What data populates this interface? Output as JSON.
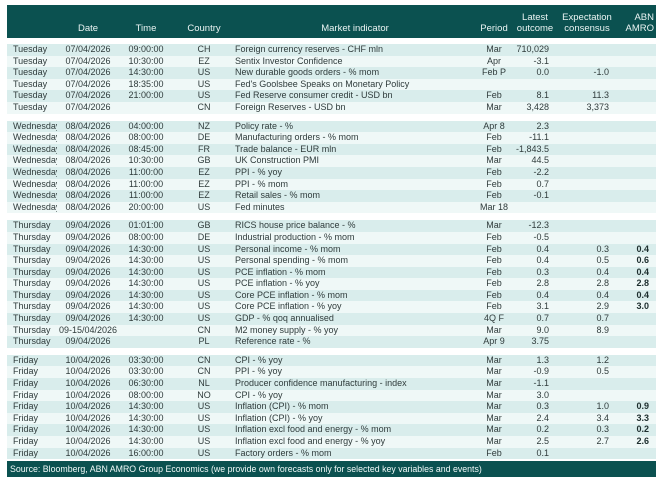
{
  "colors": {
    "header_bg": "#0b5150",
    "footer_bg": "#0b5150",
    "row_light": "#d9edec",
    "row_lighter": "#eff8f7",
    "abn_accent_text": "#1d2e2e"
  },
  "header": {
    "date": "Date",
    "time": "Time",
    "country": "Country",
    "indicator": "Market indicator",
    "period": "Period",
    "latest1": "Latest",
    "latest2": "outcome",
    "exp1": "Expectation",
    "exp2": "consensus",
    "abnamro": "ABN AMRO"
  },
  "groups": [
    {
      "day": "Tuesday",
      "rows": [
        {
          "date": "07/04/2026",
          "time": "09:00:00",
          "country": "CH",
          "indicator": "Foreign currency reserves - CHF mln",
          "period": "Mar",
          "latest": "710,029",
          "consensus": "",
          "abnamro": ""
        },
        {
          "date": "07/04/2026",
          "time": "10:30:00",
          "country": "EZ",
          "indicator": "Sentix Investor Confidence",
          "period": "Apr",
          "latest": "-3.1",
          "consensus": "",
          "abnamro": ""
        },
        {
          "date": "07/04/2026",
          "time": "14:30:00",
          "country": "US",
          "indicator": "New durable goods orders - % mom",
          "period": "Feb P",
          "latest": "0.0",
          "consensus": "-1.0",
          "abnamro": ""
        },
        {
          "date": "07/04/2026",
          "time": "18:35:00",
          "country": "US",
          "indicator": "Fed's Goolsbee Speaks on Monetary Policy",
          "period": "",
          "latest": "",
          "consensus": "",
          "abnamro": ""
        },
        {
          "date": "07/04/2026",
          "time": "21:00:00",
          "country": "US",
          "indicator": "Fed Reserve consumer credit - USD bn",
          "period": "Feb",
          "latest": "8.1",
          "consensus": "11.3",
          "abnamro": ""
        },
        {
          "date": "07/04/2026",
          "time": "",
          "country": "CN",
          "indicator": "Foreign Reserves - USD bn",
          "period": "Mar",
          "latest": "3,428",
          "consensus": "3,373",
          "abnamro": ""
        }
      ]
    },
    {
      "day": "Wednesday",
      "rows": [
        {
          "date": "08/04/2026",
          "time": "04:00:00",
          "country": "NZ",
          "indicator": "Policy rate - %",
          "period": "Apr 8",
          "latest": "2.3",
          "consensus": "",
          "abnamro": ""
        },
        {
          "date": "08/04/2026",
          "time": "08:00:00",
          "country": "DE",
          "indicator": "Manufacturing orders - % mom",
          "period": "Feb",
          "latest": "-11.1",
          "consensus": "",
          "abnamro": ""
        },
        {
          "date": "08/04/2026",
          "time": "08:45:00",
          "country": "FR",
          "indicator": "Trade balance - EUR mln",
          "period": "Feb",
          "latest": "-1,843.5",
          "consensus": "",
          "abnamro": ""
        },
        {
          "date": "08/04/2026",
          "time": "10:30:00",
          "country": "GB",
          "indicator": "UK Construction PMI",
          "period": "Mar",
          "latest": "44.5",
          "consensus": "",
          "abnamro": ""
        },
        {
          "date": "08/04/2026",
          "time": "11:00:00",
          "country": "EZ",
          "indicator": "PPI - % yoy",
          "period": "Feb",
          "latest": "-2.2",
          "consensus": "",
          "abnamro": ""
        },
        {
          "date": "08/04/2026",
          "time": "11:00:00",
          "country": "EZ",
          "indicator": "PPI - % mom",
          "period": "Feb",
          "latest": "0.7",
          "consensus": "",
          "abnamro": ""
        },
        {
          "date": "08/04/2026",
          "time": "11:00:00",
          "country": "EZ",
          "indicator": "Retail sales - % mom",
          "period": "Feb",
          "latest": "-0.1",
          "consensus": "",
          "abnamro": ""
        },
        {
          "date": "08/04/2026",
          "time": "20:00:00",
          "country": "US",
          "indicator": "Fed minutes",
          "period": "Mar 18",
          "latest": "",
          "consensus": "",
          "abnamro": ""
        }
      ]
    },
    {
      "day": "Thursday",
      "rows": [
        {
          "date": "09/04/2026",
          "time": "01:01:00",
          "country": "GB",
          "indicator": "RICS house price balance - %",
          "period": "Mar",
          "latest": "-12.3",
          "consensus": "",
          "abnamro": ""
        },
        {
          "date": "09/04/2026",
          "time": "08:00:00",
          "country": "DE",
          "indicator": "Industrial production - % mom",
          "period": "Feb",
          "latest": "-0.5",
          "consensus": "",
          "abnamro": ""
        },
        {
          "date": "09/04/2026",
          "time": "14:30:00",
          "country": "US",
          "indicator": "Personal income - % mom",
          "period": "Feb",
          "latest": "0.4",
          "consensus": "0.3",
          "abnamro": "0.4"
        },
        {
          "date": "09/04/2026",
          "time": "14:30:00",
          "country": "US",
          "indicator": "Personal spending - % mom",
          "period": "Feb",
          "latest": "0.4",
          "consensus": "0.5",
          "abnamro": "0.6"
        },
        {
          "date": "09/04/2026",
          "time": "14:30:00",
          "country": "US",
          "indicator": "PCE inflation - % mom",
          "period": "Feb",
          "latest": "0.3",
          "consensus": "0.4",
          "abnamro": "0.4"
        },
        {
          "date": "09/04/2026",
          "time": "14:30:00",
          "country": "US",
          "indicator": "PCE inflation - % yoy",
          "period": "Feb",
          "latest": "2.8",
          "consensus": "2.8",
          "abnamro": "2.8"
        },
        {
          "date": "09/04/2026",
          "time": "14:30:00",
          "country": "US",
          "indicator": "Core PCE inflation - % mom",
          "period": "Feb",
          "latest": "0.4",
          "consensus": "0.4",
          "abnamro": "0.4"
        },
        {
          "date": "09/04/2026",
          "time": "14:30:00",
          "country": "US",
          "indicator": "Core PCE inflation - % yoy",
          "period": "Feb",
          "latest": "3.1",
          "consensus": "2.9",
          "abnamro": "3.0"
        },
        {
          "date": "09/04/2026",
          "time": "14:30:00",
          "country": "US",
          "indicator": "GDP - % qoq annualised",
          "period": "4Q F",
          "latest": "0.7",
          "consensus": "0.7",
          "abnamro": ""
        },
        {
          "date": "09-15/04/2026",
          "time": "",
          "country": "CN",
          "indicator": "M2 money supply - % yoy",
          "period": "Mar",
          "latest": "9.0",
          "consensus": "8.9",
          "abnamro": ""
        },
        {
          "date": "09/04/2026",
          "time": "",
          "country": "PL",
          "indicator": "Reference rate - %",
          "period": "Apr 9",
          "latest": "3.75",
          "consensus": "",
          "abnamro": ""
        }
      ]
    },
    {
      "day": "Friday",
      "rows": [
        {
          "date": "10/04/2026",
          "time": "03:30:00",
          "country": "CN",
          "indicator": "CPI - % yoy",
          "period": "Mar",
          "latest": "1.3",
          "consensus": "1.2",
          "abnamro": ""
        },
        {
          "date": "10/04/2026",
          "time": "03:30:00",
          "country": "CN",
          "indicator": "PPI - % yoy",
          "period": "Mar",
          "latest": "-0.9",
          "consensus": "0.5",
          "abnamro": ""
        },
        {
          "date": "10/04/2026",
          "time": "06:30:00",
          "country": "NL",
          "indicator": "Producer confidence manufacturing - index",
          "period": "Mar",
          "latest": "-1.1",
          "consensus": "",
          "abnamro": ""
        },
        {
          "date": "10/04/2026",
          "time": "08:00:00",
          "country": "NO",
          "indicator": "CPI - % yoy",
          "period": "Mar",
          "latest": "3.0",
          "consensus": "",
          "abnamro": ""
        },
        {
          "date": "10/04/2026",
          "time": "14:30:00",
          "country": "US",
          "indicator": "Inflation (CPI) - % mom",
          "period": "Mar",
          "latest": "0.3",
          "consensus": "1.0",
          "abnamro": "0.9"
        },
        {
          "date": "10/04/2026",
          "time": "14:30:00",
          "country": "US",
          "indicator": "Inflation (CPI) - % yoy",
          "period": "Mar",
          "latest": "2.4",
          "consensus": "3.4",
          "abnamro": "3.3"
        },
        {
          "date": "10/04/2026",
          "time": "14:30:00",
          "country": "US",
          "indicator": "Inflation excl food and energy - % mom",
          "period": "Mar",
          "latest": "0.2",
          "consensus": "0.3",
          "abnamro": "0.2"
        },
        {
          "date": "10/04/2026",
          "time": "14:30:00",
          "country": "US",
          "indicator": "Inflation excl food and energy - % yoy",
          "period": "Mar",
          "latest": "2.5",
          "consensus": "2.7",
          "abnamro": "2.6"
        },
        {
          "date": "10/04/2026",
          "time": "16:00:00",
          "country": "US",
          "indicator": "Factory orders - % mom",
          "period": "Feb",
          "latest": "0.1",
          "consensus": "",
          "abnamro": ""
        }
      ]
    }
  ],
  "footer": {
    "source": "Source: Bloomberg,  ABN AMRO Group Economics (we provide own forecasts only for selected key variables and events)"
  }
}
